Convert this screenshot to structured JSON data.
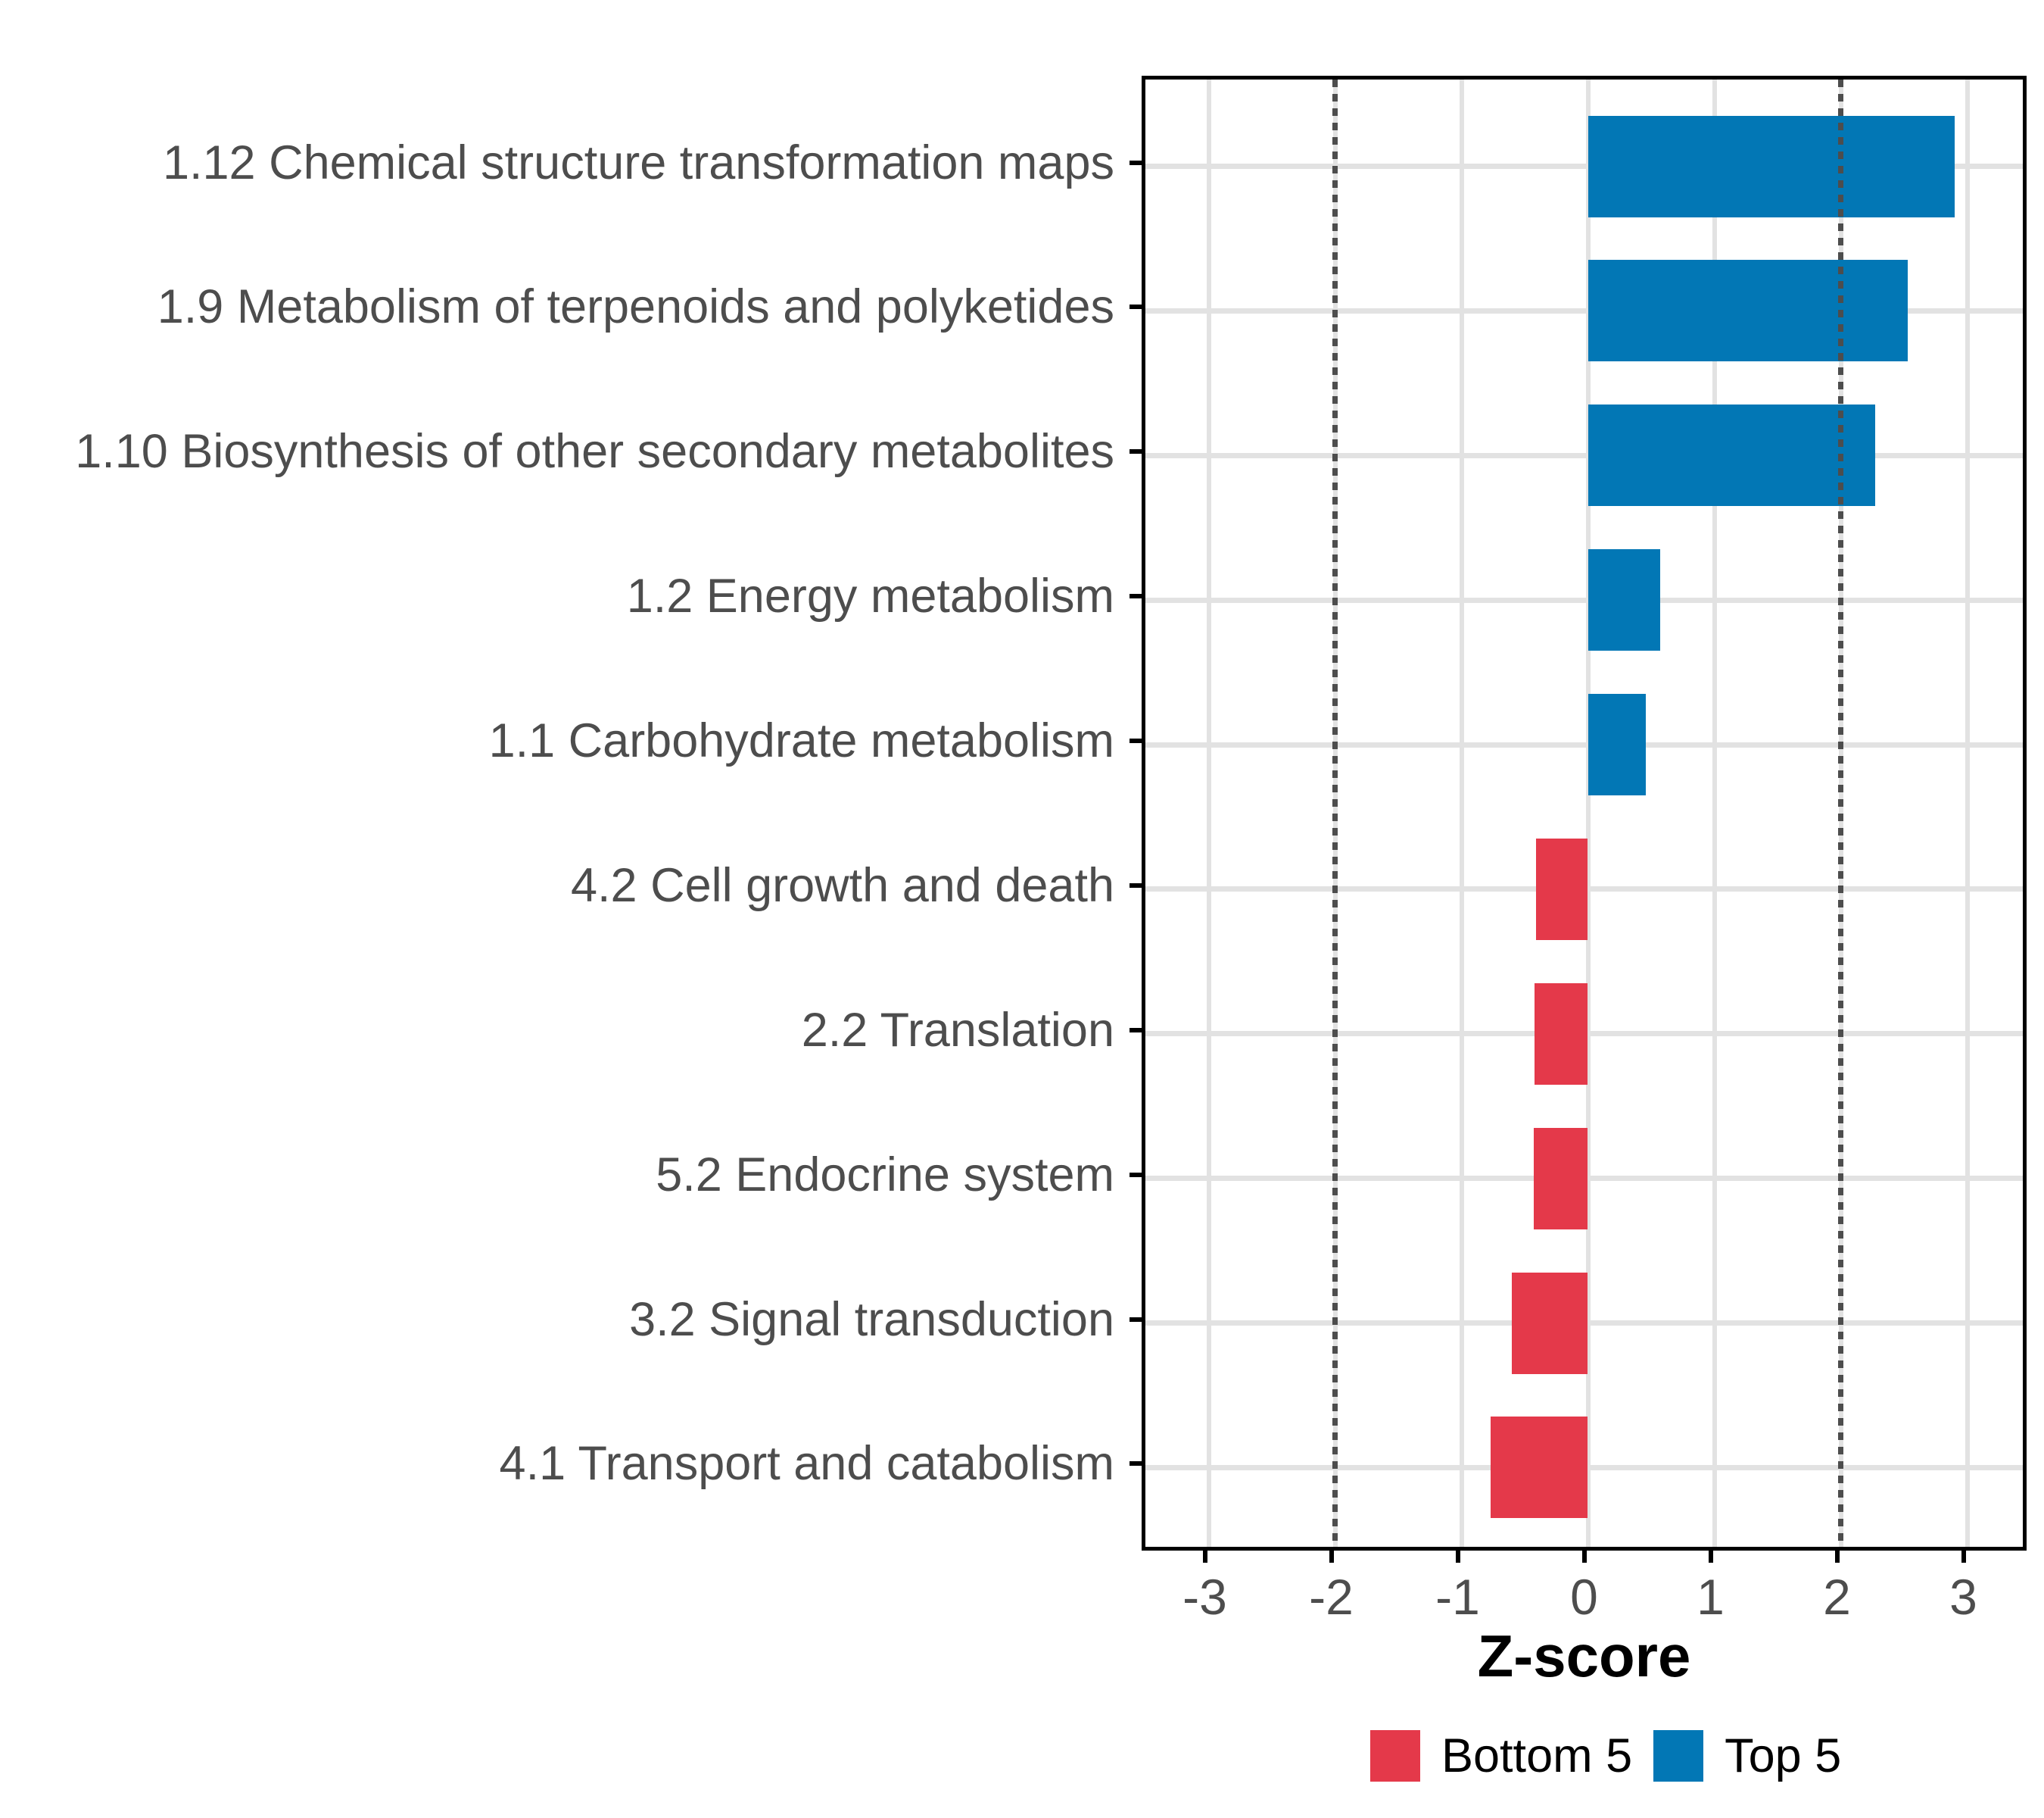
{
  "chart_data": {
    "type": "bar",
    "orientation": "horizontal",
    "title": "",
    "xlabel": "Z-score",
    "ylabel": "",
    "xlim": [
      -3.5,
      3.5
    ],
    "xticks": [
      -3,
      -2,
      -1,
      0,
      1,
      2,
      3
    ],
    "xtick_labels": [
      "-3",
      "-2",
      "-1",
      "0",
      "1",
      "2",
      "3"
    ],
    "reference_vlines": [
      -2,
      2
    ],
    "grid": true,
    "legend_position": "bottom",
    "categories": [
      "1.12 Chemical structure transformation maps",
      "1.9 Metabolism of terpenoids and polyketides",
      "1.10 Biosynthesis of other secondary metabolites",
      "1.2 Energy metabolism",
      "1.1 Carbohydrate metabolism",
      "4.2 Cell growth and death",
      "2.2 Translation",
      "5.2 Endocrine system",
      "3.2 Signal transduction",
      "4.1 Transport and catabolism"
    ],
    "values": [
      2.9,
      2.53,
      2.27,
      0.57,
      0.46,
      -0.41,
      -0.42,
      -0.43,
      -0.6,
      -0.77
    ],
    "groups": [
      "Top 5",
      "Top 5",
      "Top 5",
      "Top 5",
      "Top 5",
      "Bottom 5",
      "Bottom 5",
      "Bottom 5",
      "Bottom 5",
      "Bottom 5"
    ],
    "legend": [
      {
        "label": "Bottom 5",
        "color": "#e4394a"
      },
      {
        "label": "Top 5",
        "color": "#0277b5"
      }
    ],
    "colors": {
      "top5_blue": "#0277b5",
      "bottom5_red": "#e4394a",
      "gridline": "#e2e2e2",
      "axis_text": "#4d4d4d",
      "reference_line": "#4d4d4d",
      "panel_border": "#000000"
    }
  }
}
